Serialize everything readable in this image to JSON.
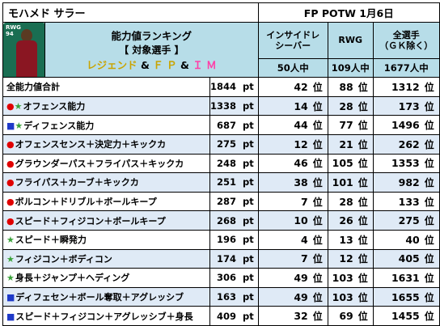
{
  "header": {
    "player_name": "モハメド サラー",
    "event": "FP POTW 1月6日"
  },
  "card": {
    "position": "RWG",
    "rating": "94"
  },
  "title": {
    "line1": "能力値ランキング",
    "line2": "【 対象選手 】",
    "legend_word": "レジェンド",
    "amp1": "&",
    "fp": "Ｆ Ｐ",
    "amp2": "&",
    "im": "Ｉ Ｍ"
  },
  "columns": [
    {
      "label1": "インサイドレ",
      "label2": "シーバー",
      "count": "50人中"
    },
    {
      "label1": "RWG",
      "label2": "",
      "count": "109人中"
    },
    {
      "label1": "全選手",
      "label2": "（ＧＫ除く）",
      "count": "1677人中"
    }
  ],
  "unit_pt": "pt",
  "unit_rank": "位",
  "colors": {
    "blue": "#1f3ac8",
    "orange": "#e8891b",
    "red": "#e02020",
    "header_bg": "#b7dde8",
    "stripe": "#dfeaf6"
  },
  "rows": [
    {
      "marker": "",
      "label": "全能力値合計",
      "pt": "1844",
      "ranks": [
        {
          "v": "42",
          "c": "blue"
        },
        {
          "v": "88",
          "c": "blue"
        },
        {
          "v": "1312",
          "c": "blue"
        }
      ]
    },
    {
      "marker": "●★",
      "label": "オフェンス能力",
      "pt": "1338",
      "ranks": [
        {
          "v": "14",
          "c": "blue"
        },
        {
          "v": "28",
          "c": "black"
        },
        {
          "v": "173",
          "c": "orange"
        }
      ]
    },
    {
      "marker": "■★",
      "label": "ディフェンス能力",
      "pt": "687",
      "ranks": [
        {
          "v": "44",
          "c": "blue"
        },
        {
          "v": "77",
          "c": "blue"
        },
        {
          "v": "1496",
          "c": "blue"
        }
      ]
    },
    {
      "marker": "●",
      "label": "オフェンスセンス＋決定力＋キックカ",
      "pt": "275",
      "ranks": [
        {
          "v": "12",
          "c": "black"
        },
        {
          "v": "21",
          "c": "orange"
        },
        {
          "v": "262",
          "c": "orange"
        }
      ]
    },
    {
      "marker": "●",
      "label": "グラウンダーパス＋フライパス＋キックカ",
      "pt": "248",
      "ranks": [
        {
          "v": "46",
          "c": "blue"
        },
        {
          "v": "105",
          "c": "blue"
        },
        {
          "v": "1353",
          "c": "blue"
        }
      ]
    },
    {
      "marker": "●",
      "label": "フライパス＋カーブ＋キックカ",
      "pt": "251",
      "ranks": [
        {
          "v": "38",
          "c": "blue"
        },
        {
          "v": "101",
          "c": "blue"
        },
        {
          "v": "982",
          "c": "black"
        }
      ]
    },
    {
      "marker": "●",
      "label": "ボルコン＋ドリブル＋ボールキープ",
      "pt": "287",
      "ranks": [
        {
          "v": "7",
          "c": "orange"
        },
        {
          "v": "28",
          "c": "black"
        },
        {
          "v": "133",
          "c": "red"
        }
      ]
    },
    {
      "marker": "●",
      "label": "スピード＋フィジコン＋ボールキープ",
      "pt": "268",
      "ranks": [
        {
          "v": "10",
          "c": "black"
        },
        {
          "v": "26",
          "c": "black"
        },
        {
          "v": "275",
          "c": "orange"
        }
      ]
    },
    {
      "marker": "★",
      "label": "スピード＋瞬発力",
      "pt": "196",
      "ranks": [
        {
          "v": "4",
          "c": "red"
        },
        {
          "v": "13",
          "c": "orange"
        },
        {
          "v": "40",
          "c": "red"
        }
      ]
    },
    {
      "marker": "★",
      "label": "フィジコン＋ボディコン",
      "pt": "174",
      "ranks": [
        {
          "v": "7",
          "c": "orange"
        },
        {
          "v": "12",
          "c": "red"
        },
        {
          "v": "405",
          "c": "black"
        }
      ]
    },
    {
      "marker": "★",
      "label": "身長＋ジャンプ＋ヘディング",
      "pt": "306",
      "ranks": [
        {
          "v": "49",
          "c": "blue"
        },
        {
          "v": "103",
          "c": "blue"
        },
        {
          "v": "1631",
          "c": "blue"
        }
      ]
    },
    {
      "marker": "■",
      "label": "ディフェセン＋ボール奪取＋アグレッシブ",
      "pt": "163",
      "ranks": [
        {
          "v": "49",
          "c": "blue"
        },
        {
          "v": "103",
          "c": "blue"
        },
        {
          "v": "1655",
          "c": "blue"
        }
      ]
    },
    {
      "marker": "■",
      "label": "スピード＋フィジコン＋アグレッシブ＋身長",
      "pt": "409",
      "ranks": [
        {
          "v": "32",
          "c": "black"
        },
        {
          "v": "69",
          "c": "black"
        },
        {
          "v": "1455",
          "c": "blue"
        }
      ]
    }
  ]
}
